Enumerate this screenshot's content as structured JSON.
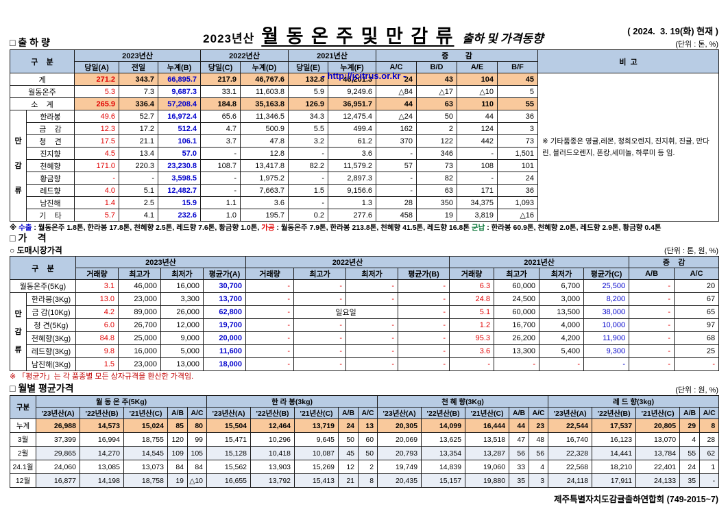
{
  "colors": {
    "header-bg": "#b8cce4",
    "total-bg": "#f9c99c",
    "alt-bg": "#e9eef6",
    "red": "#e00000",
    "blue": "#0000cc",
    "green": "#007030",
    "border": "#1a1a1a",
    "note-red": "#c00000",
    "url-blue": "#0000cc"
  },
  "title": {
    "year": "2023년산",
    "main": "월 동 온 주 및 만 감 류",
    "sub": "출하 및 가격동향",
    "url": "- http://jcitrus.or.kr -",
    "date": "( 2024.  3. 19(화) 현재 )"
  },
  "shipment": {
    "section_title": "□ 출 하 량",
    "unit": "(단위 : 톤, %)",
    "gubun": "구    분",
    "groups": [
      "2023년산",
      "2022년산",
      "2021년산",
      "증        감"
    ],
    "sub_headers": [
      "당일(A)",
      "전일",
      "누계(B)",
      "당일(C)",
      "누계(D)",
      "당일(E)",
      "누계(F)",
      "A/C",
      "B/D",
      "A/E",
      "B/F"
    ],
    "remark_header": "비  고",
    "group_label": "만감류",
    "remark": "※ 기타품종은 영귤,레몬, 청희오렌지, 진지휘, 진귤, 만다린, 블러드오렌지, 폰캉,세미놀, 하루미 등 임.",
    "rows": [
      {
        "label": "계",
        "type": "total",
        "values": [
          "271.2",
          "343.7",
          "66,895.7",
          "217.9",
          "46,767.6",
          "132.8",
          "46,201.3",
          "24",
          "43",
          "104",
          "45"
        ]
      },
      {
        "label": "월동온주",
        "type": "plain",
        "values": [
          "5.3",
          "7.3",
          "9,687.3",
          "33.1",
          "11,603.8",
          "5.9",
          "9,249.6",
          "△84",
          "△17",
          "△10",
          "5"
        ]
      },
      {
        "label": "소    계",
        "type": "total",
        "values": [
          "265.9",
          "336.4",
          "57,208.4",
          "184.8",
          "35,163.8",
          "126.9",
          "36,951.7",
          "44",
          "63",
          "110",
          "55"
        ]
      },
      {
        "label": "한라봉",
        "type": "group",
        "values": [
          "49.6",
          "52.7",
          "16,972.4",
          "65.6",
          "11,346.5",
          "34.3",
          "12,475.4",
          "△24",
          "50",
          "44",
          "36"
        ]
      },
      {
        "label": "금    감",
        "type": "group",
        "values": [
          "12.3",
          "17.2",
          "512.4",
          "4.7",
          "500.9",
          "5.5",
          "499.4",
          "162",
          "2",
          "124",
          "3"
        ]
      },
      {
        "label": "청    견",
        "type": "group",
        "values": [
          "17.5",
          "21.1",
          "106.1",
          "3.7",
          "47.8",
          "3.2",
          "61.2",
          "370",
          "122",
          "442",
          "73"
        ]
      },
      {
        "label": "진지향",
        "type": "group",
        "values": [
          "4.5",
          "13.4",
          "57.0",
          "-",
          "12.8",
          "-",
          "3.6",
          "-",
          "346",
          "-",
          "1,501"
        ]
      },
      {
        "label": "천혜향",
        "type": "group",
        "values": [
          "171.0",
          "220.3",
          "23,230.8",
          "108.7",
          "13,417.8",
          "82.2",
          "11,579.2",
          "57",
          "73",
          "108",
          "101"
        ]
      },
      {
        "label": "황금향",
        "type": "group",
        "values": [
          "-",
          "-",
          "3,598.5",
          "-",
          "1,975.2",
          "-",
          "2,897.3",
          "-",
          "82",
          "-",
          "24"
        ]
      },
      {
        "label": "레드향",
        "type": "group",
        "values": [
          "4.0",
          "5.1",
          "12,482.7",
          "-",
          "7,663.7",
          "1.5",
          "9,156.6",
          "-",
          "63",
          "171",
          "36"
        ]
      },
      {
        "label": "남진해",
        "type": "group",
        "values": [
          "1.4",
          "2.5",
          "15.9",
          "1.1",
          "3.6",
          "-",
          "1.3",
          "28",
          "350",
          "34,375",
          "1,093"
        ]
      },
      {
        "label": "기    타",
        "type": "group",
        "values": [
          "5.7",
          "4.1",
          "232.6",
          "1.0",
          "195.7",
          "0.2",
          "277.6",
          "458",
          "19",
          "3,819",
          "△16"
        ]
      }
    ]
  },
  "export_note": {
    "prefix": "※ ",
    "segments": [
      {
        "label": "수출",
        "text": " : 월동온주 1.8톤, 한라봉 17.8톤, 천혜향 2.5톤, 레드향 7.6톤, 황금향 1.0톤,  "
      },
      {
        "label": "가공",
        "text": " : 월동온주 7.9톤, 한라봉 213.8톤, 천혜향 41.5톤, 레드향 16.8톤  "
      },
      {
        "label": "군납",
        "text": " : 한라봉 60.9톤, 천혜향 2.0톤, 레드향 2.9톤, 황금향 0.4톤"
      }
    ]
  },
  "price": {
    "section_title": "□ 가    격",
    "sub_section": "○ 도매시장가격",
    "unit": "(단위 : 톤, 원, %)",
    "gubun": "구    분",
    "groups": [
      "2023년산",
      "2022년산",
      "2021년산",
      "증    감"
    ],
    "sub_headers": [
      "거래량",
      "최고가",
      "최저가",
      "평균가(A)",
      "거래량",
      "최고가",
      "최저가",
      "평균가(B)",
      "거래량",
      "최고가",
      "최저가",
      "평균가(C)",
      "A/B",
      "A/C"
    ],
    "group_label": "만감류",
    "note": "※ 「평균가」는 각 품종별 모든 상자규격을 환산한 가격임.",
    "rows": [
      {
        "label": "월동온주(5Kg)",
        "type": "plain",
        "values": [
          "3.1",
          "46,000",
          "16,000",
          "30,700",
          "-",
          "-",
          "-",
          "-",
          "6.3",
          "60,000",
          "6,700",
          "25,500",
          "-",
          "20"
        ]
      },
      {
        "label": "한라봉(3Kg)",
        "type": "group",
        "values": [
          "13.0",
          "23,000",
          "3,300",
          "13,700",
          "-",
          "-",
          "-",
          "-",
          "24.8",
          "24,500",
          "3,000",
          "8,200",
          "-",
          "67"
        ]
      },
      {
        "label": "금 감(10Kg)",
        "type": "group",
        "values": [
          "4.2",
          "89,000",
          "26,000",
          "62,800",
          "-",
          "일요일",
          null,
          "-",
          "5.1",
          "60,000",
          "13,500",
          "38,000",
          "-",
          "65"
        ]
      },
      {
        "label": "청 견(5Kg)",
        "type": "group",
        "values": [
          "6.0",
          "26,700",
          "12,000",
          "19,700",
          "-",
          "-",
          "-",
          "-",
          "1.2",
          "16,700",
          "4,000",
          "10,000",
          "-",
          "97"
        ]
      },
      {
        "label": "천혜향(3Kg)",
        "type": "group",
        "values": [
          "84.8",
          "25,000",
          "9,000",
          "20,000",
          "-",
          "-",
          "-",
          "-",
          "95.3",
          "26,200",
          "4,200",
          "11,900",
          "-",
          "68"
        ]
      },
      {
        "label": "레드향(3Kg)",
        "type": "group",
        "values": [
          "9.8",
          "16,000",
          "5,000",
          "11,600",
          "-",
          "-",
          "-",
          "-",
          "3.6",
          "13,300",
          "5,400",
          "9,300",
          "-",
          "25"
        ]
      },
      {
        "label": "남진해(3Kg)",
        "type": "group",
        "values": [
          "1.5",
          "23,000",
          "13,000",
          "18,000",
          "-",
          "-",
          "-",
          "-",
          "-",
          "-",
          "-",
          "-",
          "-",
          "-"
        ]
      }
    ]
  },
  "monthly": {
    "section_title": "□ 월별 평균가격",
    "unit": "(단위 : 원, %)",
    "gubun": "구분",
    "groups": [
      "월 동 온 주(5Kg)",
      "한 라 봉(3kg)",
      "천 혜 향(3Kg)",
      "레 드 향(3kg)"
    ],
    "sub_headers": [
      "'23년산(A)",
      "'22년산(B)",
      "'21년산(C)",
      "A/B",
      "A/C"
    ],
    "rows": [
      {
        "label": "누계",
        "type": "total",
        "values": [
          "26,988",
          "14,573",
          "15,024",
          "85",
          "80",
          "15,504",
          "12,464",
          "13,719",
          "24",
          "13",
          "20,305",
          "14,099",
          "16,444",
          "44",
          "23",
          "22,544",
          "17,537",
          "20,805",
          "29",
          "8"
        ]
      },
      {
        "label": "3월",
        "type": "plain",
        "values": [
          "37,399",
          "16,994",
          "18,755",
          "120",
          "99",
          "15,471",
          "10,296",
          "9,645",
          "50",
          "60",
          "20,069",
          "13,625",
          "13,518",
          "47",
          "48",
          "16,740",
          "16,123",
          "13,070",
          "4",
          "28"
        ]
      },
      {
        "label": "2월",
        "type": "alt",
        "values": [
          "29,865",
          "14,270",
          "14,545",
          "109",
          "105",
          "15,128",
          "10,418",
          "10,087",
          "45",
          "50",
          "20,793",
          "13,354",
          "13,287",
          "56",
          "56",
          "22,328",
          "14,441",
          "13,784",
          "55",
          "62"
        ]
      },
      {
        "label": "24.1월",
        "type": "plain",
        "values": [
          "24,060",
          "13,085",
          "13,073",
          "84",
          "84",
          "15,562",
          "13,903",
          "15,269",
          "12",
          "2",
          "19,749",
          "14,839",
          "19,060",
          "33",
          "4",
          "22,568",
          "18,210",
          "22,401",
          "24",
          "1"
        ]
      },
      {
        "label": "12월",
        "type": "alt",
        "values": [
          "16,877",
          "14,198",
          "18,758",
          "19",
          "△10",
          "16,655",
          "13,792",
          "15,413",
          "21",
          "8",
          "20,435",
          "15,157",
          "19,880",
          "35",
          "3",
          "24,118",
          "17,911",
          "24,133",
          "35",
          "-"
        ]
      }
    ]
  },
  "footer": "제주특별자치도감귤출하연합회 (749-2015~7)"
}
